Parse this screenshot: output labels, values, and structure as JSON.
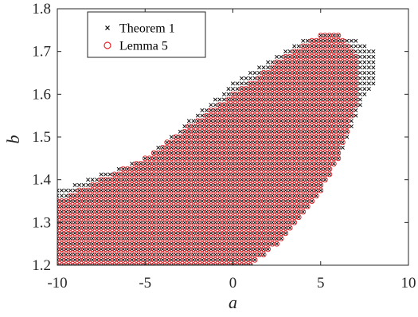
{
  "chart_data": {
    "type": "scatter",
    "xlabel": "a",
    "ylabel": "b",
    "xlim": [
      -10,
      10
    ],
    "ylim": [
      1.2,
      1.8
    ],
    "xticks": [
      -10,
      -5,
      0,
      5,
      10
    ],
    "yticks": [
      1.2,
      1.3,
      1.4,
      1.5,
      1.6,
      1.7,
      1.8
    ],
    "xtick_labels": [
      "-10",
      "-5",
      "0",
      "5",
      "10"
    ],
    "ytick_labels": [
      "1.2",
      "1.3",
      "1.4",
      "1.5",
      "1.6",
      "1.7",
      "1.8"
    ],
    "grid": false,
    "legend_position": "top-left",
    "sampling": {
      "x_step": 0.25,
      "y_step": 0.0125
    },
    "series": [
      {
        "name": "Theorem 1",
        "marker": "x",
        "color": "#000000",
        "region_columns": [
          {
            "a": -10,
            "b_min": 1.2,
            "b_max": 1.375
          },
          {
            "a": -7.5,
            "b_min": 1.2,
            "b_max": 1.413
          },
          {
            "a": -5,
            "b_min": 1.2,
            "b_max": 1.45
          },
          {
            "a": -2.5,
            "b_min": 1.2,
            "b_max": 1.538
          },
          {
            "a": 0,
            "b_min": 1.2,
            "b_max": 1.625
          },
          {
            "a": 1,
            "b_min": 1.2,
            "b_max": 1.65
          },
          {
            "a": 2.5,
            "b_min": 1.25,
            "b_max": 1.688
          },
          {
            "a": 4,
            "b_min": 1.313,
            "b_max": 1.725
          },
          {
            "a": 5,
            "b_min": 1.375,
            "b_max": 1.738
          },
          {
            "a": 6,
            "b_min": 1.45,
            "b_max": 1.738
          },
          {
            "a": 7,
            "b_min": 1.55,
            "b_max": 1.725
          },
          {
            "a": 7.5,
            "b_min": 1.6,
            "b_max": 1.713
          },
          {
            "a": 8,
            "b_min": 1.625,
            "b_max": 1.7
          }
        ]
      },
      {
        "name": "Lemma 5",
        "marker": "o",
        "color": "#e8262b",
        "region_columns": [
          {
            "a": -10,
            "b_min": 1.2,
            "b_max": 1.35
          },
          {
            "a": -7.5,
            "b_min": 1.2,
            "b_max": 1.4
          },
          {
            "a": -5,
            "b_min": 1.2,
            "b_max": 1.45
          },
          {
            "a": -2.5,
            "b_min": 1.2,
            "b_max": 1.525
          },
          {
            "a": 0,
            "b_min": 1.2,
            "b_max": 1.6
          },
          {
            "a": 1,
            "b_min": 1.2,
            "b_max": 1.625
          },
          {
            "a": 2.5,
            "b_min": 1.25,
            "b_max": 1.675
          },
          {
            "a": 4,
            "b_min": 1.313,
            "b_max": 1.713
          },
          {
            "a": 5,
            "b_min": 1.375,
            "b_max": 1.738
          },
          {
            "a": 6,
            "b_min": 1.45,
            "b_max": 1.738
          },
          {
            "a": 7,
            "b_min": 1.575,
            "b_max": 1.688
          }
        ]
      }
    ]
  }
}
